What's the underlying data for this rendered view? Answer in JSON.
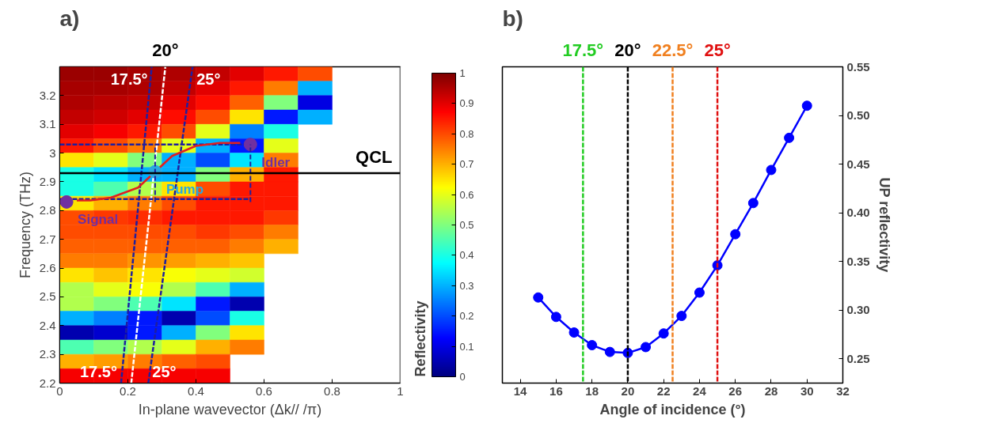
{
  "chart_data": [
    {
      "type": "heatmap",
      "title": "a)",
      "xlabel": "In-plane wavevector (Δk// /π)",
      "ylabel": "Frequency (THz)",
      "clabel": "Reflectivity",
      "x": [
        0.05,
        0.15,
        0.25,
        0.35,
        0.45,
        0.55,
        0.65,
        0.75,
        0.85,
        0.95
      ],
      "y": [
        3.275,
        3.225,
        3.175,
        3.125,
        3.075,
        3.025,
        2.975,
        2.925,
        2.875,
        2.825,
        2.775,
        2.725,
        2.675,
        2.625,
        2.575,
        2.525,
        2.475,
        2.425,
        2.375,
        2.325,
        2.275,
        2.225
      ],
      "cells": [
        [
          0.97,
          0.97,
          0.96,
          0.95,
          0.93,
          0.9,
          0.85,
          0.8,
          null,
          null
        ],
        [
          0.96,
          0.96,
          0.95,
          0.93,
          0.9,
          0.85,
          0.75,
          0.3,
          null,
          null
        ],
        [
          0.95,
          0.94,
          0.93,
          0.9,
          0.86,
          0.78,
          0.5,
          0.1,
          null,
          null
        ],
        [
          0.93,
          0.92,
          0.9,
          0.86,
          0.8,
          0.65,
          0.15,
          0.3,
          null,
          null
        ],
        [
          0.9,
          0.88,
          0.85,
          0.8,
          0.6,
          0.25,
          0.4,
          null,
          null,
          null
        ],
        [
          0.85,
          0.8,
          0.75,
          0.6,
          0.3,
          0.15,
          0.6,
          null,
          null,
          null
        ],
        [
          0.65,
          0.6,
          0.5,
          0.3,
          0.2,
          0.35,
          0.75,
          null,
          null,
          null
        ],
        [
          0.4,
          0.35,
          0.3,
          0.3,
          0.5,
          0.7,
          0.85,
          null,
          null,
          null
        ],
        [
          0.4,
          0.45,
          0.55,
          0.65,
          0.8,
          0.85,
          0.85,
          null,
          null,
          null
        ],
        [
          0.65,
          0.7,
          0.75,
          0.8,
          0.85,
          0.85,
          0.85,
          null,
          null,
          null
        ],
        [
          0.8,
          0.82,
          0.83,
          0.85,
          0.85,
          0.85,
          0.82,
          null,
          null,
          null
        ],
        [
          0.8,
          0.8,
          0.8,
          0.8,
          0.82,
          0.8,
          0.75,
          null,
          null,
          null
        ],
        [
          0.78,
          0.78,
          0.78,
          0.78,
          0.78,
          0.75,
          0.7,
          null,
          null,
          null
        ],
        [
          0.75,
          0.75,
          0.73,
          0.72,
          0.7,
          0.68,
          null,
          null,
          null,
          null
        ],
        [
          0.65,
          0.68,
          0.65,
          0.62,
          0.6,
          0.58,
          null,
          null,
          null,
          null
        ],
        [
          0.55,
          0.6,
          0.62,
          0.55,
          0.45,
          0.3,
          null,
          null,
          null,
          null
        ],
        [
          0.55,
          0.5,
          0.45,
          0.35,
          0.15,
          0.05,
          null,
          null,
          null,
          null
        ],
        [
          0.3,
          0.25,
          0.15,
          0.05,
          0.2,
          0.4,
          null,
          null,
          null,
          null
        ],
        [
          0.05,
          0.08,
          0.15,
          0.3,
          0.5,
          0.65,
          null,
          null,
          null,
          null
        ],
        [
          0.45,
          0.5,
          0.55,
          0.6,
          0.7,
          0.75,
          null,
          null,
          null,
          null
        ],
        [
          0.7,
          0.72,
          0.75,
          0.78,
          0.8,
          null,
          null,
          null,
          null,
          null
        ],
        [
          0.88,
          0.88,
          0.88,
          0.88,
          0.88,
          null,
          null,
          null,
          null,
          null
        ]
      ],
      "clim": [
        0,
        1
      ],
      "cticks": [
        0,
        0.1,
        0.2,
        0.3,
        0.4,
        0.5,
        0.6,
        0.7,
        0.8,
        0.9,
        1
      ],
      "xlim": [
        0,
        1
      ],
      "ylim": [
        2.2,
        3.3
      ],
      "xticks": [
        0,
        0.2,
        0.4,
        0.6,
        0.8,
        1
      ],
      "yticks": [
        2.2,
        2.3,
        2.4,
        2.5,
        2.6,
        2.7,
        2.8,
        2.9,
        3,
        3.1,
        3.2
      ],
      "grid": false,
      "series": [
        {
          "type": "line",
          "line_style": "dashed",
          "color": "#1f1f9f",
          "x": [
            0.18,
            0.27
          ],
          "values": [
            2.2,
            3.3
          ]
        },
        {
          "type": "line",
          "line_style": "dashed",
          "color": "#1f1f9f",
          "x": [
            0.26,
            0.39
          ],
          "values": [
            2.2,
            3.3
          ]
        },
        {
          "type": "line",
          "line_style": "dashed",
          "color": "#ffffff",
          "x": [
            0.21,
            0.31
          ],
          "values": [
            2.2,
            3.3
          ]
        },
        {
          "type": "line",
          "line_style": "dashed",
          "color": "#1f1f9f",
          "x": [
            0,
            0.56
          ],
          "values": [
            3.03,
            3.03
          ]
        },
        {
          "type": "line",
          "line_style": "dashed",
          "color": "#1f1f9f",
          "x": [
            0,
            0.56
          ],
          "values": [
            2.84,
            2.84
          ]
        },
        {
          "type": "line",
          "line_style": "solid",
          "color": "#e02020",
          "x": [
            0.28,
            0.33,
            0.4,
            0.47,
            0.53
          ],
          "values": [
            2.935,
            2.99,
            3.025,
            3.035,
            3.035
          ]
        },
        {
          "type": "line",
          "line_style": "solid",
          "color": "#e02020",
          "x": [
            0.28,
            0.23,
            0.15,
            0.09,
            0.05
          ],
          "values": [
            2.935,
            2.88,
            2.845,
            2.835,
            2.835
          ]
        },
        {
          "type": "scatter",
          "name": "Signal",
          "color": "#7030a0",
          "x": [
            0.02
          ],
          "values": [
            2.83
          ]
        },
        {
          "type": "scatter",
          "name": "Pump",
          "color": "#29a9e0",
          "x": [
            0.28
          ],
          "values": [
            2.935
          ]
        },
        {
          "type": "scatter",
          "name": "Idler",
          "color": "#7030a0",
          "x": [
            0.56
          ],
          "values": [
            3.03
          ]
        }
      ],
      "ref_lines": [
        {
          "axis": "y",
          "value": 2.93,
          "label": "QCL",
          "color": "#000000"
        }
      ],
      "annotations": [
        {
          "text": "17.5°",
          "x": 0.27,
          "y": 3.3
        },
        {
          "text": "25°",
          "x": 0.39,
          "y": 3.3
        },
        {
          "text": "20°",
          "x": 0.31,
          "y": 3.3
        },
        {
          "text": "17.5°",
          "x": 0.18,
          "y": 2.2
        },
        {
          "text": "25°",
          "x": 0.26,
          "y": 2.2
        }
      ]
    },
    {
      "type": "line",
      "title": "b)",
      "xlabel": "Angle of incidence (°)",
      "y2label": "UP reflectivity",
      "x": [
        15,
        16,
        17,
        18,
        19,
        20,
        21,
        22,
        23,
        24,
        25,
        26,
        27,
        28,
        29,
        30
      ],
      "series": [
        {
          "color": "#0000ff",
          "axis": "y2",
          "values": [
            0.313,
            0.293,
            0.277,
            0.264,
            0.257,
            0.256,
            0.262,
            0.276,
            0.294,
            0.318,
            0.346,
            0.378,
            0.41,
            0.444,
            0.477,
            0.51
          ]
        }
      ],
      "marker": "circle",
      "line_style": "solid",
      "grid": false,
      "xlim": [
        13,
        32
      ],
      "xticks": [
        14,
        16,
        18,
        20,
        22,
        24,
        26,
        28,
        30,
        32
      ],
      "y2lim": [
        0.225,
        0.55
      ],
      "y2ticks": [
        0.25,
        {
          "value": 0.3,
          "label": "0.30"
        },
        0.35,
        {
          "value": 0.4,
          "label": "0.40"
        },
        0.45,
        {
          "value": 0.5,
          "label": "0.50"
        },
        0.55
      ],
      "ref_lines": [
        {
          "axis": "x",
          "value": 17.5,
          "label": "17.5°",
          "color": "#22cc22",
          "line_style": "dashed"
        },
        {
          "axis": "x",
          "value": 20,
          "label": "20°",
          "color": "#000000",
          "line_style": "dashed"
        },
        {
          "axis": "x",
          "value": 22.5,
          "label": "22.5°",
          "color": "#f08020",
          "line_style": "dashed"
        },
        {
          "axis": "x",
          "value": 25,
          "label": "25°",
          "color": "#e01010",
          "line_style": "dashed"
        }
      ]
    }
  ]
}
